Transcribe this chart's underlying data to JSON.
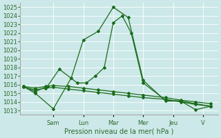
{
  "xlabel": "Pression niveau de la mer( hPa )",
  "bg_color": "#cce8e8",
  "grid_color": "#ffffff",
  "line_color": "#1a6b1a",
  "ylim": [
    1012.5,
    1025.5
  ],
  "yticks": [
    1013,
    1014,
    1015,
    1016,
    1017,
    1018,
    1019,
    1020,
    1021,
    1022,
    1023,
    1024,
    1025
  ],
  "day_names": [
    "Sam",
    "Lun",
    "Mar",
    "Mer",
    "Jeu",
    "V"
  ],
  "day_x": [
    2.0,
    4.0,
    6.0,
    8.0,
    10.0,
    12.0
  ],
  "xlim": [
    -0.2,
    13.0
  ],
  "series1_x": [
    0.0,
    0.8,
    2.0,
    3.2,
    4.0,
    5.0,
    6.0,
    7.0,
    8.0,
    9.5,
    10.5,
    11.5,
    12.5
  ],
  "series1_y": [
    1015.8,
    1015.0,
    1013.2,
    1016.8,
    1021.2,
    1022.2,
    1025.0,
    1023.8,
    1016.5,
    1014.1,
    1014.1,
    1013.1,
    1013.5
  ],
  "series2_x": [
    0.0,
    0.8,
    1.6,
    2.4,
    3.6,
    4.2,
    4.8,
    5.4,
    6.0,
    6.6,
    7.2,
    8.0,
    9.5,
    10.5,
    11.5,
    12.5
  ],
  "series2_y": [
    1015.8,
    1015.2,
    1015.8,
    1017.8,
    1016.2,
    1016.2,
    1017.0,
    1018.0,
    1023.2,
    1024.0,
    1022.0,
    1016.2,
    1014.2,
    1014.1,
    1013.8,
    1013.5
  ],
  "series3_x": [
    0.0,
    0.8,
    1.5,
    2.0,
    3.0,
    4.0,
    5.0,
    6.0,
    7.0,
    8.0,
    9.5,
    10.5,
    11.5,
    12.5
  ],
  "series3_y": [
    1015.8,
    1015.6,
    1015.8,
    1015.9,
    1015.8,
    1015.6,
    1015.4,
    1015.2,
    1015.0,
    1014.8,
    1014.5,
    1014.2,
    1014.0,
    1013.8
  ],
  "series4_x": [
    0.0,
    0.8,
    1.5,
    2.0,
    3.0,
    4.0,
    5.0,
    6.0,
    7.0,
    8.0,
    9.5,
    10.5,
    11.5,
    12.5
  ],
  "series4_y": [
    1015.7,
    1015.4,
    1015.6,
    1015.7,
    1015.5,
    1015.3,
    1015.1,
    1014.9,
    1014.7,
    1014.5,
    1014.3,
    1014.0,
    1013.7,
    1013.5
  ],
  "xlabel_fontsize": 7,
  "tick_fontsize": 6
}
